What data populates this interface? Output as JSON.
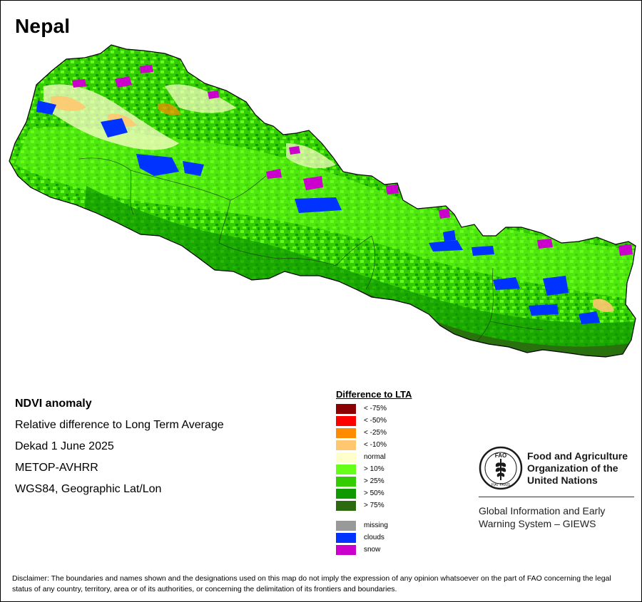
{
  "map": {
    "title": "Nepal"
  },
  "info": {
    "product": "NDVI anomaly",
    "description": "Relative difference to Long Term Average",
    "period": "Dekad 1 June 2025",
    "sensor": "METOP-AVHRR",
    "projection": "WGS84, Geographic Lat/Lon"
  },
  "legend": {
    "title": "Difference to LTA",
    "classes": [
      {
        "label": "< -75%",
        "color": "#8b0000"
      },
      {
        "label": "< -50%",
        "color": "#ff0000"
      },
      {
        "label": "< -25%",
        "color": "#ff8c00"
      },
      {
        "label": "< -10%",
        "color": "#ffc870"
      },
      {
        "label": "normal",
        "color": "#ffffcc"
      },
      {
        "label": "> 10%",
        "color": "#66ff1a"
      },
      {
        "label": "> 25%",
        "color": "#33cc00"
      },
      {
        "label": "> 50%",
        "color": "#109900"
      },
      {
        "label": "> 75%",
        "color": "#2b6a0f"
      }
    ],
    "special": [
      {
        "label": "missing",
        "color": "#999999"
      },
      {
        "label": "clouds",
        "color": "#0033ff"
      },
      {
        "label": "snow",
        "color": "#cc00cc"
      }
    ]
  },
  "organization": {
    "name_line1": "Food and Agriculture",
    "name_line2": "Organization of the",
    "name_line3": "United Nations",
    "emblem_letters": "FAO",
    "emblem_motto": "FIAT PANIS",
    "system_line1": "Global Information and Early",
    "system_line2": "Warning System – GIEWS"
  },
  "disclaimer": "Disclaimer: The boundaries and names shown and the designations used on this map do not imply the expression of any opinion whatsoever on the part of FAO concerning the legal status of any country, territory, area or of its authorities, or concerning the delimitation of its frontiers and boundaries."
}
